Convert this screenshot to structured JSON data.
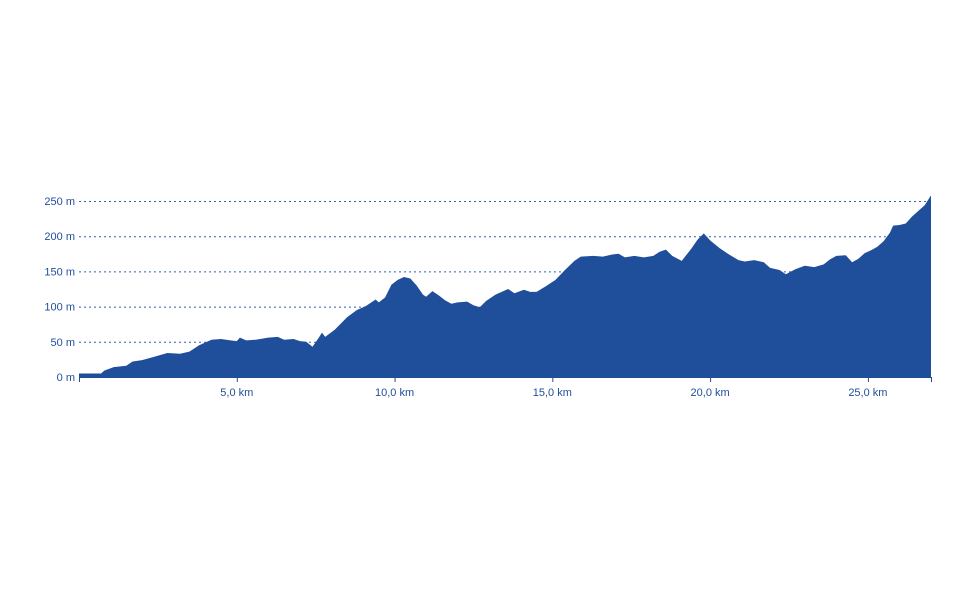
{
  "chart_data": {
    "type": "area",
    "xlabel": "",
    "ylabel": "",
    "xlim": [
      0,
      27.0
    ],
    "ylim": [
      0,
      250
    ],
    "grid": true,
    "fill_color": "#1f4e9a",
    "text_color": "#1f4e9a",
    "grid_color": "#2f62b3",
    "y_ticks": [
      {
        "value": 0,
        "label": "0 m"
      },
      {
        "value": 50,
        "label": "50 m"
      },
      {
        "value": 100,
        "label": "100 m"
      },
      {
        "value": 150,
        "label": "150 m"
      },
      {
        "value": 200,
        "label": "200 m"
      },
      {
        "value": 250,
        "label": "250 m"
      }
    ],
    "x_ticks": [
      {
        "value": 5,
        "label": "5,0 km"
      },
      {
        "value": 10,
        "label": "10,0 km"
      },
      {
        "value": 15,
        "label": "15,0 km"
      },
      {
        "value": 20,
        "label": "20,0 km"
      },
      {
        "value": 25,
        "label": "25,0 km"
      }
    ],
    "series": [
      {
        "points": [
          [
            0,
            5
          ],
          [
            0.7,
            5
          ],
          [
            0.8,
            9
          ],
          [
            1.1,
            14
          ],
          [
            1.5,
            16
          ],
          [
            1.7,
            22
          ],
          [
            2.0,
            24
          ],
          [
            2.4,
            29
          ],
          [
            2.8,
            34
          ],
          [
            3.2,
            33
          ],
          [
            3.5,
            36
          ],
          [
            3.8,
            45
          ],
          [
            4.2,
            53
          ],
          [
            4.5,
            54
          ],
          [
            4.8,
            52
          ],
          [
            5.0,
            51
          ],
          [
            5.1,
            56
          ],
          [
            5.3,
            52
          ],
          [
            5.6,
            53
          ],
          [
            6.0,
            56
          ],
          [
            6.3,
            57
          ],
          [
            6.5,
            53
          ],
          [
            6.8,
            54
          ],
          [
            7.0,
            51
          ],
          [
            7.2,
            50
          ],
          [
            7.4,
            43
          ],
          [
            7.6,
            56
          ],
          [
            7.7,
            63
          ],
          [
            7.8,
            57
          ],
          [
            8.1,
            67
          ],
          [
            8.5,
            85
          ],
          [
            8.8,
            95
          ],
          [
            9.1,
            101
          ],
          [
            9.4,
            110
          ],
          [
            9.5,
            106
          ],
          [
            9.7,
            113
          ],
          [
            9.9,
            131
          ],
          [
            10.1,
            138
          ],
          [
            10.3,
            142
          ],
          [
            10.5,
            140
          ],
          [
            10.7,
            130
          ],
          [
            10.9,
            117
          ],
          [
            11.0,
            114
          ],
          [
            11.2,
            122
          ],
          [
            11.4,
            116
          ],
          [
            11.6,
            109
          ],
          [
            11.8,
            104
          ],
          [
            12.0,
            106
          ],
          [
            12.3,
            107
          ],
          [
            12.5,
            102
          ],
          [
            12.7,
            99
          ],
          [
            12.9,
            108
          ],
          [
            13.2,
            117
          ],
          [
            13.6,
            125
          ],
          [
            13.8,
            119
          ],
          [
            14.1,
            124
          ],
          [
            14.3,
            121
          ],
          [
            14.5,
            121
          ],
          [
            14.8,
            129
          ],
          [
            15.1,
            138
          ],
          [
            15.4,
            152
          ],
          [
            15.7,
            165
          ],
          [
            15.9,
            171
          ],
          [
            16.3,
            172
          ],
          [
            16.6,
            171
          ],
          [
            16.9,
            174
          ],
          [
            17.1,
            175
          ],
          [
            17.3,
            170
          ],
          [
            17.6,
            172
          ],
          [
            17.9,
            170
          ],
          [
            18.2,
            172
          ],
          [
            18.4,
            178
          ],
          [
            18.6,
            181
          ],
          [
            18.8,
            172
          ],
          [
            19.1,
            165
          ],
          [
            19.4,
            182
          ],
          [
            19.6,
            195
          ],
          [
            19.8,
            204
          ],
          [
            20.0,
            194
          ],
          [
            20.3,
            183
          ],
          [
            20.6,
            174
          ],
          [
            20.9,
            166
          ],
          [
            21.1,
            164
          ],
          [
            21.4,
            166
          ],
          [
            21.7,
            163
          ],
          [
            21.9,
            155
          ],
          [
            22.2,
            152
          ],
          [
            22.4,
            146
          ],
          [
            22.7,
            153
          ],
          [
            23.0,
            158
          ],
          [
            23.3,
            156
          ],
          [
            23.6,
            160
          ],
          [
            23.8,
            167
          ],
          [
            24.0,
            172
          ],
          [
            24.3,
            173
          ],
          [
            24.5,
            163
          ],
          [
            24.7,
            168
          ],
          [
            24.9,
            176
          ],
          [
            25.1,
            180
          ],
          [
            25.3,
            185
          ],
          [
            25.5,
            193
          ],
          [
            25.7,
            205
          ],
          [
            25.8,
            215
          ],
          [
            26.0,
            216
          ],
          [
            26.2,
            218
          ],
          [
            26.4,
            228
          ],
          [
            26.6,
            236
          ],
          [
            26.8,
            244
          ],
          [
            27.0,
            258
          ]
        ]
      }
    ]
  }
}
